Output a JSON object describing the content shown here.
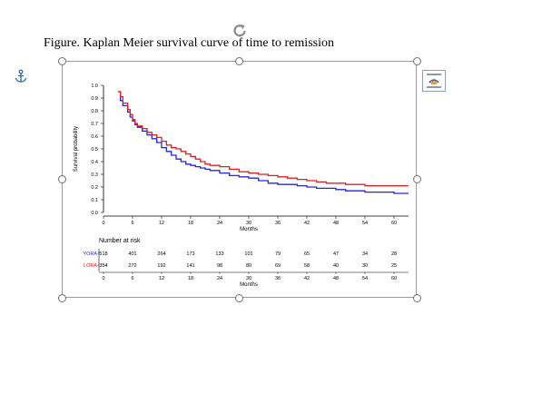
{
  "document": {
    "caption": "Figure. Kaplan Meier survival curve of time to remission"
  },
  "icons": {
    "anchor": "anchor-icon",
    "rotate": "rotate-handle-icon",
    "layout_options": "layout-options-icon"
  },
  "colors": {
    "yora": "#2626d9",
    "lora": "#e02020",
    "axis": "#000000",
    "selection_handle": "#707070"
  },
  "chart_data": {
    "type": "line",
    "title": "",
    "xlabel": "Months",
    "ylabel": "Survival probability",
    "xlim": [
      0,
      63
    ],
    "ylim": [
      0,
      1.0
    ],
    "x_ticks": [
      0,
      6,
      12,
      18,
      24,
      30,
      36,
      42,
      48,
      54,
      60
    ],
    "y_ticks": [
      0.0,
      0.1,
      0.2,
      0.3,
      0.4,
      0.5,
      0.6,
      0.7,
      0.8,
      0.9,
      1.0
    ],
    "y_tick_labels": [
      "0.0",
      "0.1",
      "0.2",
      "0.3",
      "0.4",
      "0.5",
      "0.6",
      "0.7",
      "0.8",
      "0.9",
      "1.0"
    ],
    "grid": false,
    "series": [
      {
        "name": "YORA",
        "color": "#2626d9",
        "x": [
          3,
          3.5,
          4,
          5,
          5.5,
          6,
          6.5,
          7,
          8,
          9,
          10,
          11,
          12,
          13,
          14,
          15,
          16,
          17,
          18,
          19,
          20,
          21,
          22,
          24,
          26,
          28,
          30,
          32,
          34,
          36,
          38,
          40,
          42,
          44,
          46,
          48,
          50,
          52,
          54,
          56,
          58,
          60,
          63
        ],
        "y": [
          0.95,
          0.88,
          0.84,
          0.79,
          0.75,
          0.72,
          0.69,
          0.67,
          0.64,
          0.61,
          0.58,
          0.55,
          0.51,
          0.48,
          0.45,
          0.42,
          0.4,
          0.38,
          0.37,
          0.36,
          0.35,
          0.34,
          0.33,
          0.31,
          0.29,
          0.28,
          0.27,
          0.25,
          0.23,
          0.22,
          0.22,
          0.21,
          0.2,
          0.19,
          0.19,
          0.18,
          0.17,
          0.17,
          0.16,
          0.16,
          0.16,
          0.15,
          0.15
        ]
      },
      {
        "name": "LORA",
        "color": "#e02020",
        "x": [
          3,
          3.5,
          4,
          5,
          5.5,
          6,
          6.5,
          7,
          8,
          9,
          10,
          11,
          12,
          13,
          14,
          15,
          16,
          17,
          18,
          19,
          20,
          21,
          22,
          24,
          26,
          28,
          30,
          32,
          34,
          36,
          38,
          40,
          42,
          44,
          46,
          48,
          50,
          52,
          54,
          56,
          58,
          60,
          63
        ],
        "y": [
          0.95,
          0.91,
          0.86,
          0.81,
          0.77,
          0.73,
          0.7,
          0.68,
          0.66,
          0.63,
          0.61,
          0.59,
          0.56,
          0.53,
          0.51,
          0.5,
          0.48,
          0.46,
          0.44,
          0.42,
          0.4,
          0.38,
          0.37,
          0.36,
          0.34,
          0.32,
          0.31,
          0.3,
          0.29,
          0.28,
          0.27,
          0.26,
          0.25,
          0.24,
          0.23,
          0.23,
          0.22,
          0.22,
          0.21,
          0.21,
          0.21,
          0.21,
          0.21
        ]
      }
    ],
    "risk_table": {
      "title": "Number at risk",
      "time_points": [
        0,
        6,
        12,
        18,
        24,
        30,
        36,
        42,
        48,
        54,
        60
      ],
      "xlabel": "Months",
      "rows": [
        {
          "name": "YORA",
          "color": "#2626d9",
          "values": [
            518,
            401,
            264,
            173,
            133,
            101,
            79,
            65,
            47,
            34,
            28
          ]
        },
        {
          "name": "LORA",
          "color": "#e02020",
          "values": [
            354,
            272,
            192,
            141,
            98,
            80,
            69,
            58,
            40,
            30,
            25
          ]
        }
      ]
    }
  }
}
